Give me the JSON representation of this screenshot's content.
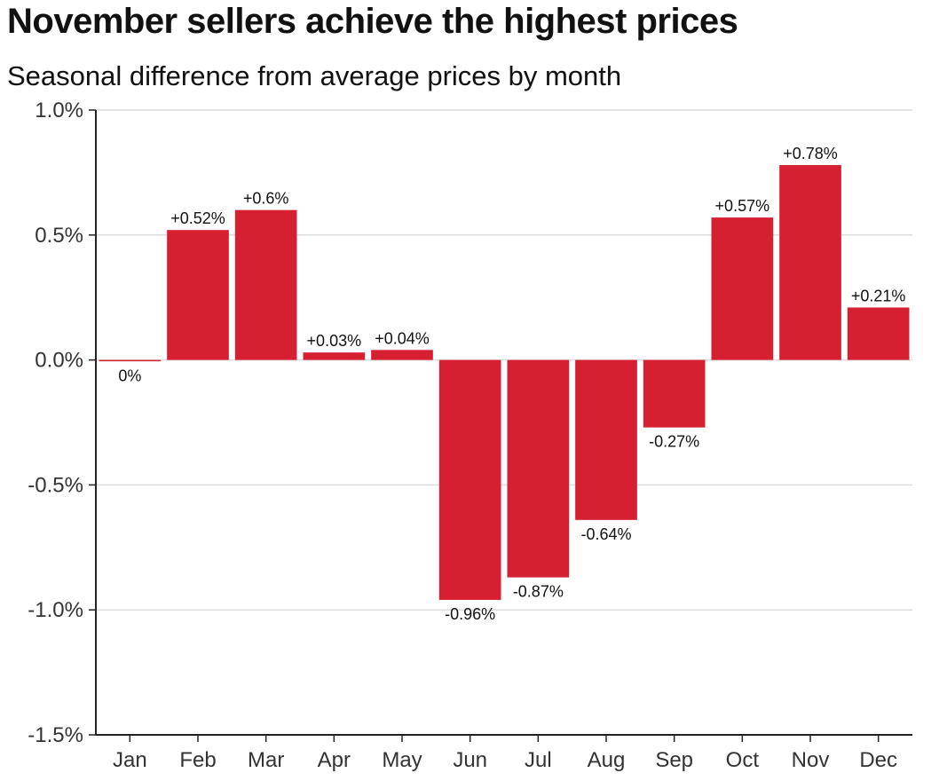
{
  "chart_data": {
    "type": "bar",
    "title": "November sellers achieve the highest prices",
    "subtitle": "Seasonal difference from average prices by month",
    "xlabel": "",
    "ylabel": "",
    "categories": [
      "Jan",
      "Feb",
      "Mar",
      "Apr",
      "May",
      "Jun",
      "Jul",
      "Aug",
      "Sep",
      "Oct",
      "Nov",
      "Dec"
    ],
    "values": [
      0,
      0.52,
      0.6,
      0.03,
      0.04,
      -0.96,
      -0.87,
      -0.64,
      -0.27,
      0.57,
      0.78,
      0.21
    ],
    "data_labels": [
      "0%",
      "+0.52%",
      "+0.6%",
      "+0.03%",
      "+0.04%",
      "-0.96%",
      "-0.87%",
      "-0.64%",
      "-0.27%",
      "+0.57%",
      "+0.78%",
      "+0.21%"
    ],
    "ylim": [
      -1.5,
      1.0
    ],
    "yticks": [
      1.0,
      0.5,
      0.0,
      -0.5,
      -1.0,
      -1.5
    ],
    "ytick_labels": [
      "1.0%",
      "0.5%",
      "0.0%",
      "-0.5%",
      "-1.0%",
      "-1.5%"
    ],
    "grid": true,
    "bar_color": "#d62031"
  }
}
